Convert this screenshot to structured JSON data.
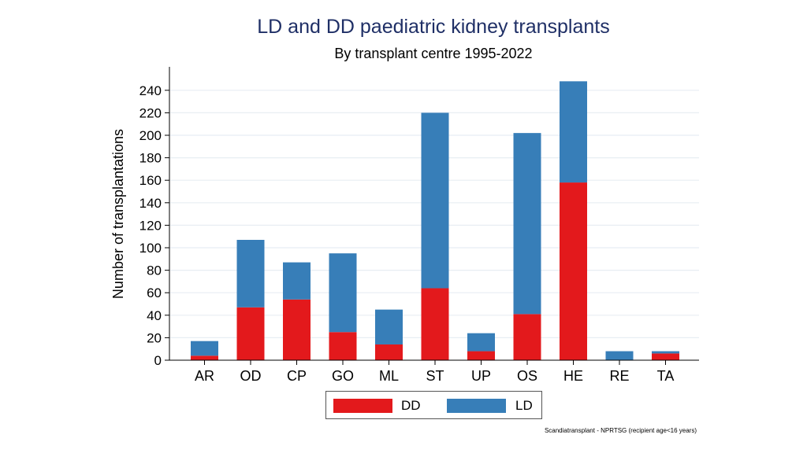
{
  "chart_data": {
    "type": "bar",
    "stacked": true,
    "title": "LD and DD paediatric kidney transplants",
    "subtitle": "By transplant centre 1995-2022",
    "xlabel": "",
    "ylabel": "Number of transplantations",
    "ylim": [
      0,
      260
    ],
    "yticks": [
      0,
      20,
      40,
      60,
      80,
      100,
      120,
      140,
      160,
      180,
      200,
      220,
      240
    ],
    "grid": true,
    "categories": [
      "AR",
      "OD",
      "CP",
      "GO",
      "ML",
      "ST",
      "UP",
      "OS",
      "HE",
      "RE",
      "TA"
    ],
    "series": [
      {
        "name": "DD",
        "color": "#e3191c",
        "values": [
          4,
          47,
          54,
          25,
          14,
          64,
          8,
          41,
          158,
          0,
          6
        ]
      },
      {
        "name": "LD",
        "color": "#377eb8",
        "values": [
          13,
          60,
          33,
          70,
          31,
          156,
          16,
          161,
          90,
          8,
          2
        ]
      }
    ],
    "legend": {
      "position": "bottom",
      "entries": [
        "DD",
        "LD"
      ]
    },
    "source_note": "Scandiatransplant - NPRTSG (recipient age<16 years)"
  },
  "colors": {
    "dd": "#e3191c",
    "ld": "#377eb8",
    "title": "#1f2f66",
    "grid": "#e8eef3"
  }
}
